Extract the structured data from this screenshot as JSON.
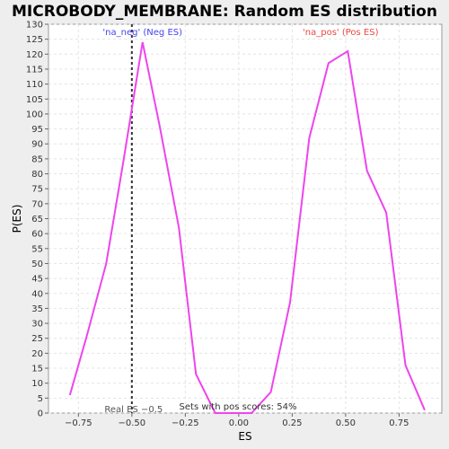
{
  "chart_data": {
    "type": "line",
    "title": "MICROBODY_MEMBRANE: Random ES distribution",
    "xlabel": "ES",
    "ylabel": "P(ES)",
    "xlim": [
      -0.89,
      0.95
    ],
    "ylim": [
      0,
      130
    ],
    "x_ticks": [
      -0.75,
      -0.5,
      -0.25,
      0.0,
      0.25,
      0.5,
      0.75
    ],
    "x_tick_labels": [
      "−0.75",
      "−0.50",
      "−0.25",
      "0.00",
      "0.25",
      "0.50",
      "0.75"
    ],
    "y_ticks": [
      0,
      5,
      10,
      15,
      20,
      25,
      30,
      35,
      40,
      45,
      50,
      55,
      60,
      65,
      70,
      75,
      80,
      85,
      90,
      95,
      100,
      105,
      110,
      115,
      120,
      125,
      130
    ],
    "grid": true,
    "series": [
      {
        "color": "#ee44ee",
        "x": [
          -0.79,
          -0.71,
          -0.62,
          -0.54,
          -0.45,
          -0.37,
          -0.28,
          -0.2,
          -0.11,
          -0.03,
          0.06,
          0.15,
          0.24,
          0.33,
          0.42,
          0.51,
          0.6,
          0.69,
          0.78,
          0.87
        ],
        "y": [
          6,
          26,
          50,
          84,
          124,
          96,
          62,
          13,
          0,
          0,
          0,
          7,
          37,
          92,
          117,
          121,
          81,
          67,
          16,
          1
        ]
      }
    ],
    "annotations": {
      "neg_label": "'na_neg' (Neg ES)",
      "neg_color": "#4444ee",
      "neg_x": -0.45,
      "pos_label": "'na_pos' (Pos ES)",
      "pos_color": "#ee4444",
      "pos_x": 0.51,
      "real_es_label": "Real ES −0.5",
      "real_es_value": -0.5,
      "pos_scores_label": "Sets with pos scores: 54%"
    }
  }
}
